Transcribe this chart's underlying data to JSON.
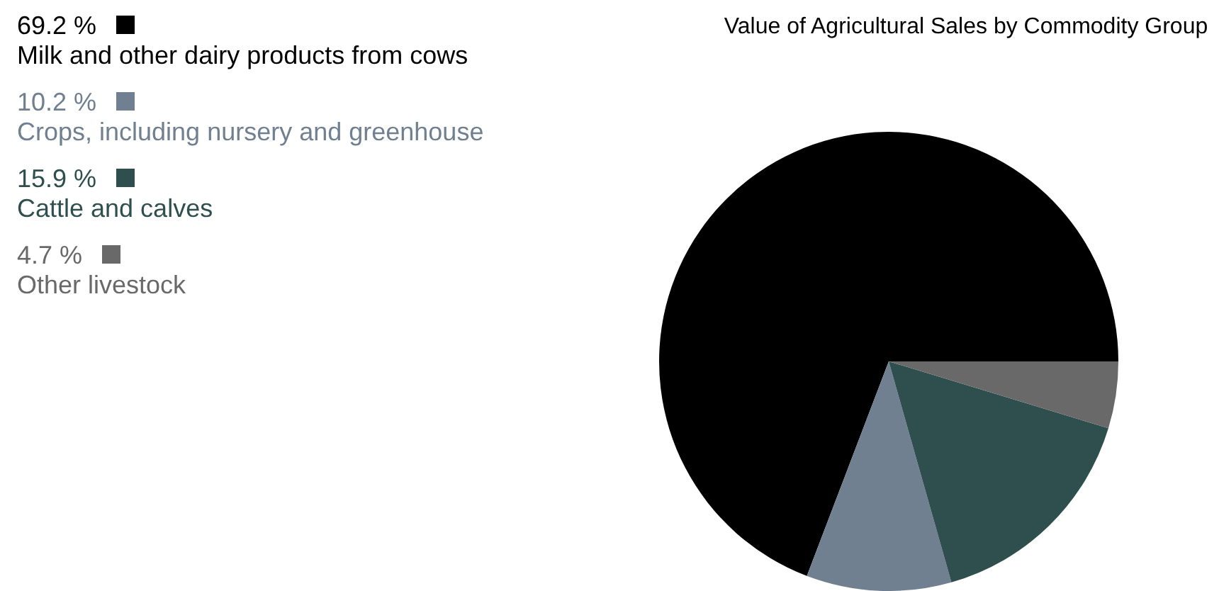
{
  "chart_data": {
    "type": "pie",
    "title": "Value of Agricultural Sales by Commodity Group",
    "categories": [
      "Milk and other dairy products from cows",
      "Crops, including nursery and greenhouse",
      "Cattle and calves",
      "Other livestock"
    ],
    "values": [
      69.2,
      10.2,
      15.9,
      4.7
    ],
    "value_labels": [
      "69.2 %",
      "10.2 %",
      "15.9 %",
      "4.7 %"
    ],
    "colors": [
      "#000000",
      "#708090",
      "#2f4f4f",
      "#696969"
    ],
    "legend": "top left"
  }
}
